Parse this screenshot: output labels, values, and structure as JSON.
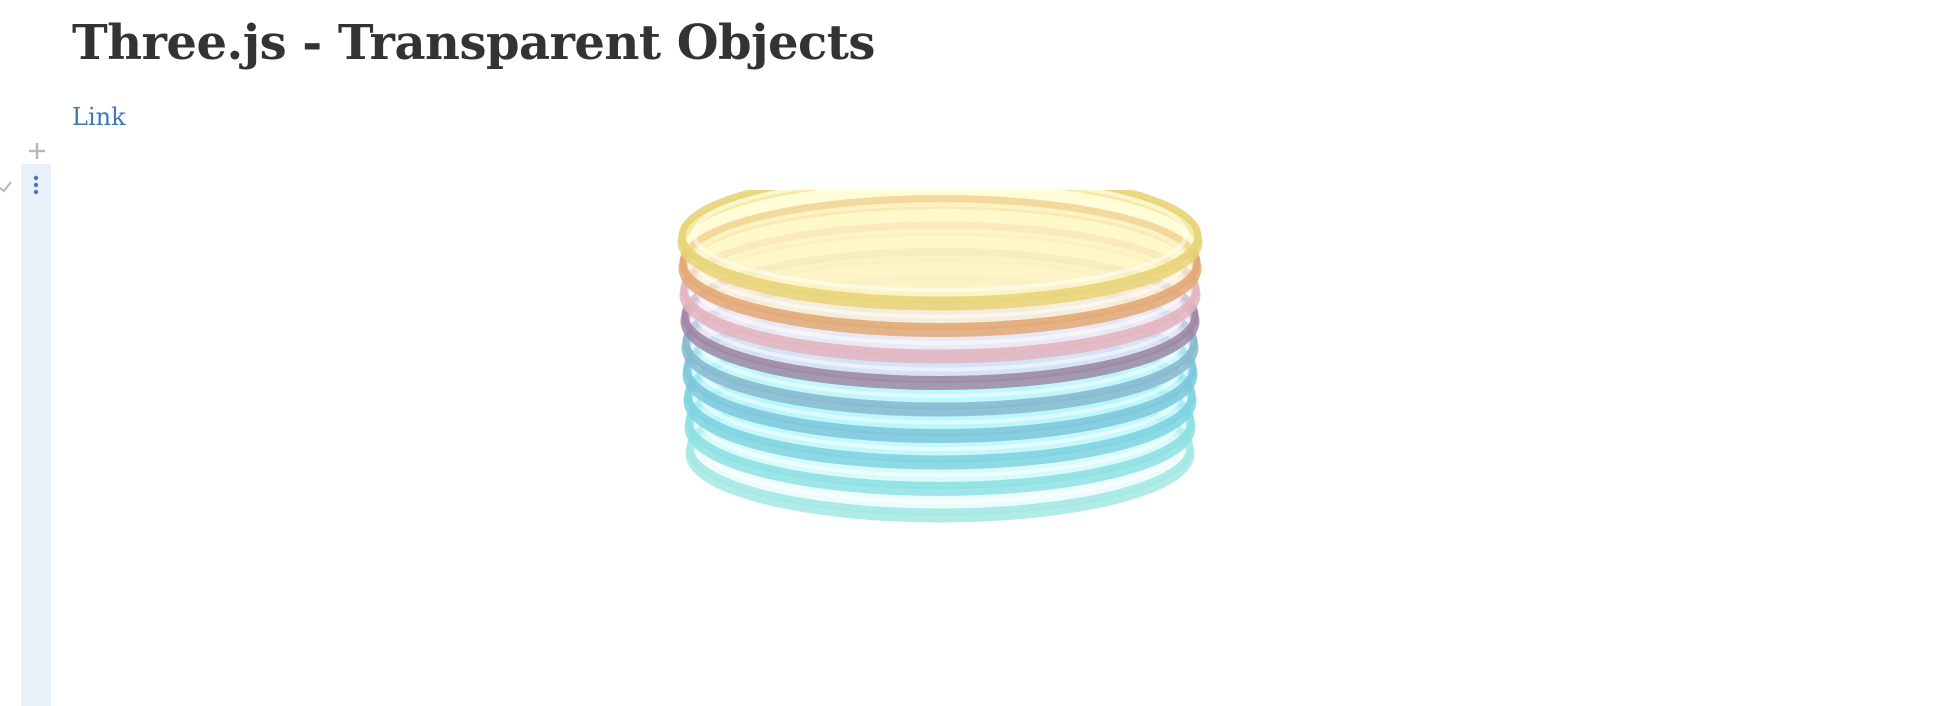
{
  "page": {
    "title": "Three.js - Transparent Objects",
    "link_label": "Link"
  },
  "icons": {
    "add": "plus-icon",
    "check": "check-icon",
    "menu": "vertical-dots-icon"
  },
  "colors": {
    "title": "#333333",
    "link": "#3b78b5",
    "cell_bar": "#e8f0fa",
    "menu_dots": "#4a77b4",
    "gutter_icon": "#b8b8b8"
  },
  "scene": {
    "description_free": true,
    "discs": [
      {
        "rim": "#a3e8e4",
        "fill": "#dffaf8"
      },
      {
        "rim": "#8ee0e3",
        "fill": "#c9f7f9"
      },
      {
        "rim": "#7fd3e0",
        "fill": "#b7f6fb"
      },
      {
        "rim": "#7ec7da",
        "fill": "#b2f5fb"
      },
      {
        "rim": "#88b9cf",
        "fill": "#c6f7fa"
      },
      {
        "rim": "#9e88a4",
        "fill": "#e8d4ee"
      },
      {
        "rim": "#e3b5c0",
        "fill": "#f8eef6"
      },
      {
        "rim": "#e3a874",
        "fill": "#fdf1c6"
      },
      {
        "rim": "#e8d478",
        "fill": "#fffab6"
      }
    ]
  }
}
